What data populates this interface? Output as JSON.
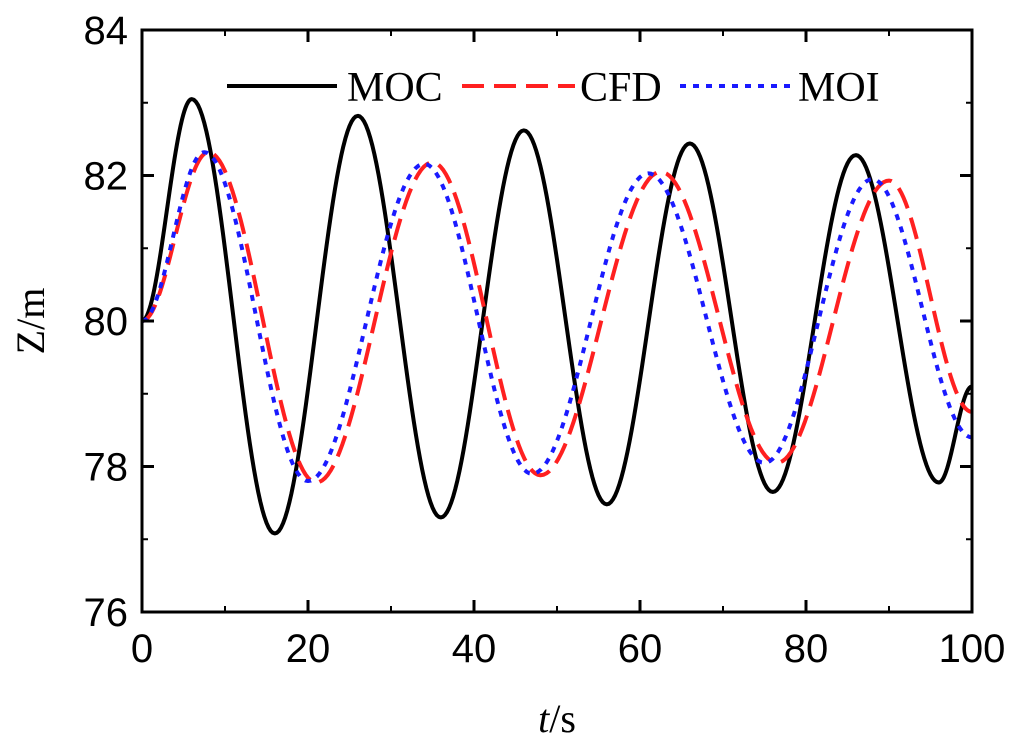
{
  "chart_data": {
    "type": "line",
    "title": "",
    "xlabel_italic": "t",
    "xlabel_rest": "/s",
    "ylabel": "Z/m",
    "xlim": [
      0,
      100
    ],
    "ylim": [
      76,
      84
    ],
    "xticks": [
      0,
      20,
      40,
      60,
      80,
      100
    ],
    "yticks": [
      76,
      78,
      80,
      82,
      84
    ],
    "grid": false,
    "legend_position": "top",
    "series": [
      {
        "name": "MOC",
        "color": "#000000",
        "dash": "solid",
        "x": [
          0,
          6,
          16,
          26,
          36,
          46,
          56,
          66,
          76,
          86,
          96,
          100
        ],
        "y": [
          80.0,
          83.05,
          77.08,
          82.82,
          77.3,
          82.62,
          77.48,
          82.44,
          77.65,
          82.28,
          77.78,
          79.1
        ]
      },
      {
        "name": "CFD",
        "color": "#ff2020",
        "dash": "dashed",
        "x": [
          0,
          8,
          21,
          35,
          48,
          62.5,
          76.5,
          90,
          100
        ],
        "y": [
          80.0,
          82.32,
          77.78,
          82.18,
          77.88,
          82.05,
          78.05,
          81.93,
          78.75
        ]
      },
      {
        "name": "MOI",
        "color": "#1a1aff",
        "dash": "dotted",
        "x": [
          0,
          7.5,
          20,
          34,
          47,
          61,
          75,
          88,
          100
        ],
        "y": [
          80.0,
          82.32,
          77.8,
          82.16,
          77.9,
          82.03,
          78.05,
          81.95,
          78.4
        ]
      }
    ]
  }
}
